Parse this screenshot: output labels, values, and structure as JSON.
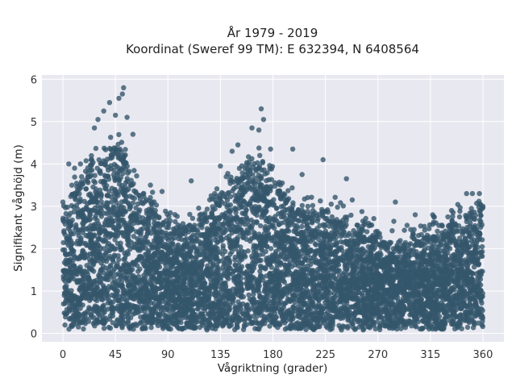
{
  "chart_data": {
    "type": "scatter",
    "title_line1": "År 1979 - 2019",
    "title_line2": "Koordinat (Sweref 99 TM): E 632394, N 6408564",
    "xlabel": "Vågriktning (grader)",
    "ylabel": "Signifikant våghöjd (m)",
    "xlim": [
      -18,
      378
    ],
    "ylim": [
      -0.2,
      6.1
    ],
    "xticks": [
      0,
      45,
      90,
      135,
      180,
      225,
      270,
      315,
      360
    ],
    "yticks": [
      0,
      1,
      2,
      3,
      4,
      5,
      6
    ],
    "background": "#e8e8f0",
    "grid": true,
    "grid_color": "#ffffff",
    "point_color": "#34566b",
    "point_opacity": 0.8,
    "envelope": {
      "description_note": "Dense cloud of points spanning 0–360 degrees; approximate upper envelope of the bulk of data (x in degrees, y in metres)",
      "x": [
        0,
        10,
        20,
        30,
        40,
        45,
        50,
        55,
        60,
        70,
        80,
        90,
        100,
        110,
        120,
        130,
        140,
        150,
        160,
        165,
        170,
        175,
        180,
        190,
        200,
        210,
        220,
        230,
        240,
        250,
        260,
        270,
        280,
        290,
        300,
        310,
        320,
        330,
        340,
        350,
        355,
        360
      ],
      "y": [
        2.6,
        3.2,
        3.6,
        3.9,
        4.1,
        4.2,
        4.1,
        3.8,
        3.4,
        3.0,
        2.6,
        2.4,
        2.3,
        2.4,
        2.6,
        2.9,
        3.2,
        3.5,
        3.8,
        3.9,
        3.9,
        3.8,
        3.5,
        3.0,
        2.8,
        2.7,
        2.7,
        2.6,
        2.5,
        2.4,
        2.2,
        2.1,
        2.0,
        2.0,
        2.0,
        2.1,
        2.2,
        2.3,
        2.5,
        2.7,
        2.8,
        2.7
      ]
    },
    "outliers": [
      {
        "x": 52,
        "y": 5.8
      },
      {
        "x": 51,
        "y": 5.65
      },
      {
        "x": 48,
        "y": 5.55
      },
      {
        "x": 40,
        "y": 5.45
      },
      {
        "x": 35,
        "y": 5.25
      },
      {
        "x": 30,
        "y": 5.05
      },
      {
        "x": 45,
        "y": 5.15
      },
      {
        "x": 55,
        "y": 5.1
      },
      {
        "x": 27,
        "y": 4.85
      },
      {
        "x": 60,
        "y": 4.7
      },
      {
        "x": 170,
        "y": 5.3
      },
      {
        "x": 172,
        "y": 5.05
      },
      {
        "x": 162,
        "y": 4.85
      },
      {
        "x": 168,
        "y": 4.8
      },
      {
        "x": 150,
        "y": 4.45
      },
      {
        "x": 145,
        "y": 4.3
      },
      {
        "x": 178,
        "y": 4.35
      },
      {
        "x": 197,
        "y": 4.35
      },
      {
        "x": 205,
        "y": 3.75
      },
      {
        "x": 223,
        "y": 4.1
      },
      {
        "x": 243,
        "y": 3.65
      },
      {
        "x": 248,
        "y": 3.15
      },
      {
        "x": 285,
        "y": 3.1
      },
      {
        "x": 302,
        "y": 2.8
      },
      {
        "x": 317,
        "y": 2.8
      },
      {
        "x": 346,
        "y": 3.3
      },
      {
        "x": 351,
        "y": 3.3
      },
      {
        "x": 357,
        "y": 3.3
      },
      {
        "x": 0,
        "y": 3.1
      },
      {
        "x": 5,
        "y": 4.0
      },
      {
        "x": 10,
        "y": 3.9
      },
      {
        "x": 15,
        "y": 4.0
      },
      {
        "x": 75,
        "y": 3.5
      },
      {
        "x": 85,
        "y": 3.35
      },
      {
        "x": 110,
        "y": 3.6
      },
      {
        "x": 130,
        "y": 3.3
      },
      {
        "x": 135,
        "y": 3.95
      },
      {
        "x": 140,
        "y": 3.7
      },
      {
        "x": 188,
        "y": 3.55
      },
      {
        "x": 210,
        "y": 3.0
      },
      {
        "x": 230,
        "y": 3.05
      },
      {
        "x": 262,
        "y": 2.6
      },
      {
        "x": 270,
        "y": 2.35
      },
      {
        "x": 295,
        "y": 2.55
      },
      {
        "x": 330,
        "y": 2.75
      },
      {
        "x": 340,
        "y": 2.75
      },
      {
        "x": 360,
        "y": 3.0
      }
    ]
  }
}
